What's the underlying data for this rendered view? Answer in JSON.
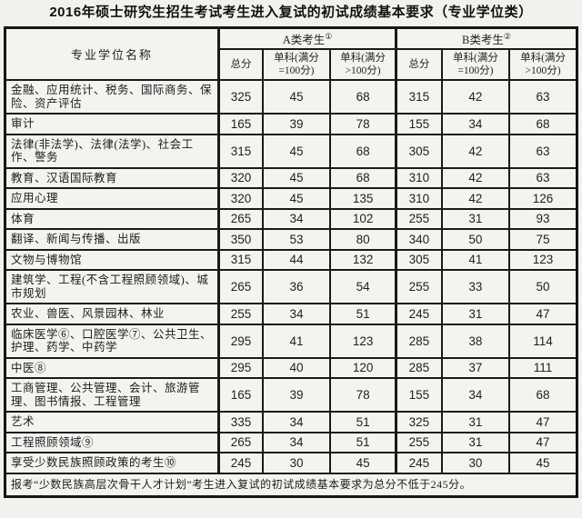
{
  "title": "2016年硕士研究生招生考试考生进入复试的初试成绩基本要求（专业学位类）",
  "table": {
    "name_header": "专业学位名称",
    "group_a": {
      "label": "A类考生",
      "sup": "①"
    },
    "group_b": {
      "label": "B类考生",
      "sup": "②"
    },
    "sub_headers": [
      "总分",
      "单科(满分=100分)",
      "单科(满分>100分)"
    ],
    "rows": [
      {
        "name": "金融、应用统计、税务、国际商务、保险、资产评估",
        "a": [
          "325",
          "45",
          "68"
        ],
        "b": [
          "315",
          "42",
          "63"
        ]
      },
      {
        "name": "审计",
        "a": [
          "165",
          "39",
          "78"
        ],
        "b": [
          "155",
          "34",
          "68"
        ]
      },
      {
        "name": "法律(非法学)、法律(法学)、社会工作、警务",
        "a": [
          "315",
          "45",
          "68"
        ],
        "b": [
          "305",
          "42",
          "63"
        ]
      },
      {
        "name": "教育、汉语国际教育",
        "a": [
          "320",
          "45",
          "68"
        ],
        "b": [
          "310",
          "42",
          "63"
        ]
      },
      {
        "name": "应用心理",
        "a": [
          "320",
          "45",
          "135"
        ],
        "b": [
          "310",
          "42",
          "126"
        ]
      },
      {
        "name": "体育",
        "a": [
          "265",
          "34",
          "102"
        ],
        "b": [
          "255",
          "31",
          "93"
        ]
      },
      {
        "name": "翻译、新闻与传播、出版",
        "a": [
          "350",
          "53",
          "80"
        ],
        "b": [
          "340",
          "50",
          "75"
        ]
      },
      {
        "name": "文物与博物馆",
        "a": [
          "315",
          "44",
          "132"
        ],
        "b": [
          "305",
          "41",
          "123"
        ]
      },
      {
        "name": "建筑学、工程(不含工程照顾领域)、城市规划",
        "a": [
          "265",
          "36",
          "54"
        ],
        "b": [
          "255",
          "33",
          "50"
        ]
      },
      {
        "name": "农业、兽医、风景园林、林业",
        "a": [
          "255",
          "34",
          "51"
        ],
        "b": [
          "245",
          "31",
          "47"
        ]
      },
      {
        "name": "临床医学⑥、口腔医学⑦、公共卫生、护理、药学、中药学",
        "a": [
          "295",
          "41",
          "123"
        ],
        "b": [
          "285",
          "38",
          "114"
        ]
      },
      {
        "name": "中医⑧",
        "a": [
          "295",
          "40",
          "120"
        ],
        "b": [
          "285",
          "37",
          "111"
        ]
      },
      {
        "name": "工商管理、公共管理、会计、旅游管理、图书情报、工程管理",
        "a": [
          "165",
          "39",
          "78"
        ],
        "b": [
          "155",
          "34",
          "68"
        ]
      },
      {
        "name": "艺术",
        "a": [
          "335",
          "34",
          "51"
        ],
        "b": [
          "325",
          "31",
          "47"
        ]
      },
      {
        "name": "工程照顾领域⑨",
        "a": [
          "265",
          "34",
          "51"
        ],
        "b": [
          "255",
          "31",
          "47"
        ]
      },
      {
        "name": "享受少数民族照顾政策的考生⑩",
        "a": [
          "245",
          "30",
          "45"
        ],
        "b": [
          "245",
          "30",
          "45"
        ]
      }
    ],
    "footnote": "报考“少数民族高层次骨干人才计划”考生进入复试的初试成绩基本要求为总分不低于245分。"
  },
  "colors": {
    "background": "#f1f1ee",
    "border": "#1a1a1a",
    "text": "#1c1c1c"
  }
}
